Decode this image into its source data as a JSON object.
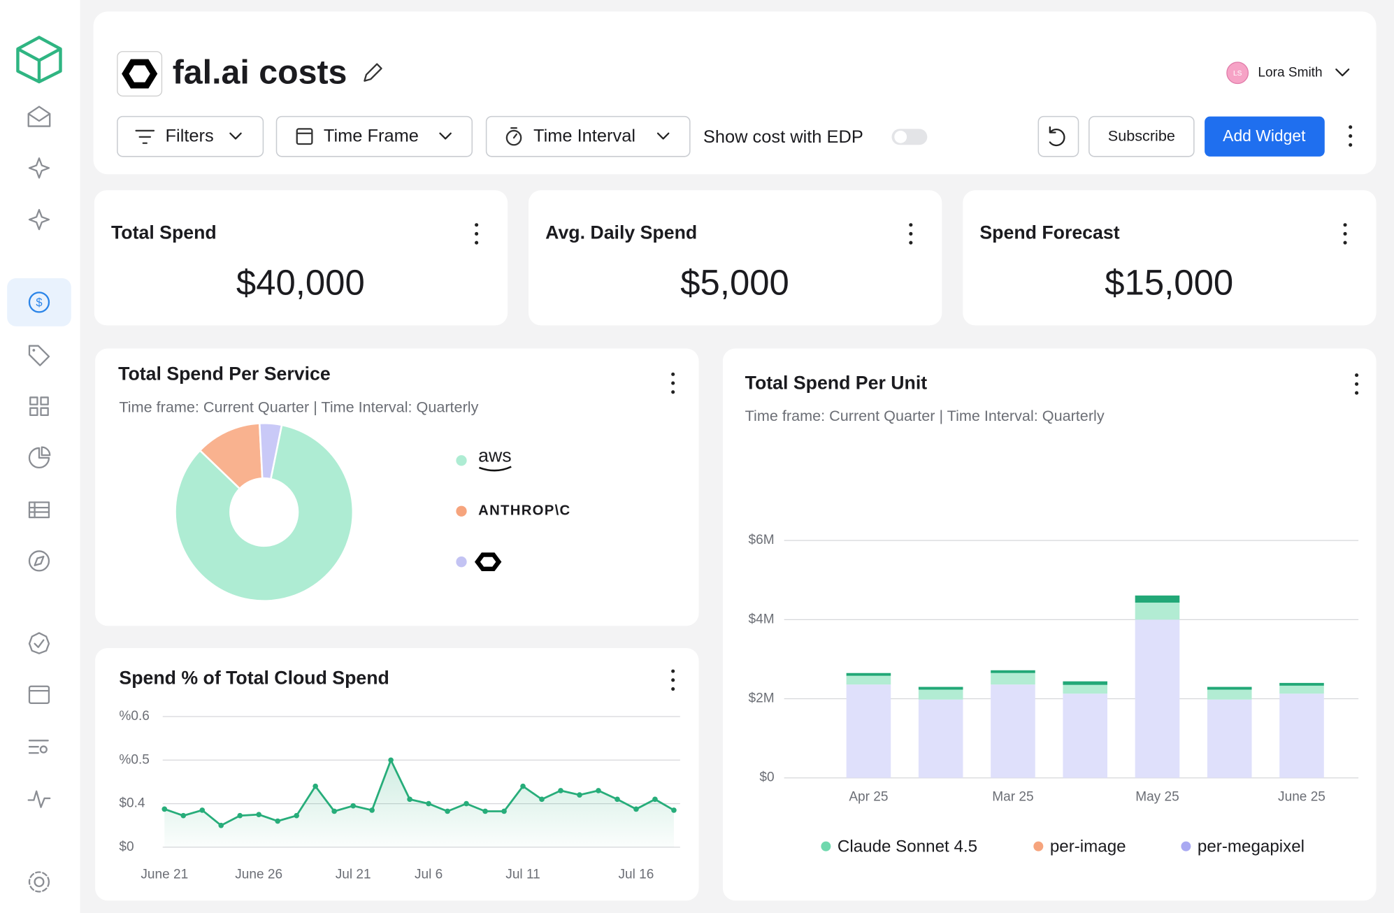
{
  "header": {
    "title": "fal.ai costs",
    "user": "Lora Smith",
    "initials": "LS",
    "controls": {
      "filters": "Filters",
      "time_frame": "Time Frame",
      "time_interval": "Time Interval",
      "edp": "Show cost with EDP",
      "subscribe": "Subscribe",
      "add_widget": "Add Widget"
    }
  },
  "kpis": [
    {
      "title": "Total Spend",
      "value": "$40,000"
    },
    {
      "title": "Avg. Daily Spend",
      "value": "$5,000"
    },
    {
      "title": "Spend Forecast",
      "value": "$15,000"
    }
  ],
  "chart_data": [
    {
      "type": "pie",
      "title": "Total Spend Per Service",
      "subtitle": "Time frame: Current Quarter | Time Interval: Quarterly",
      "categories": [
        "aws",
        "ANTHROP\\C",
        null
      ],
      "values": [
        84,
        12,
        4
      ],
      "colors": [
        "#aeecd3",
        "#f9b28f",
        "#c9c9f7"
      ],
      "legend_colors": [
        "#aeecd3",
        "#f6a47d",
        "#c3c3f3"
      ]
    },
    {
      "type": "line",
      "title": "Spend % of Total Cloud Spend",
      "color": "#27ad7a",
      "categories": [
        "June 21",
        null,
        null,
        null,
        null,
        "June 26",
        null,
        null,
        null,
        null,
        "Jul 21",
        null,
        null,
        null,
        "Jul 6",
        null,
        null,
        null,
        null,
        "Jul 11",
        null,
        null,
        null,
        null,
        null,
        "Jul 16",
        null,
        null
      ],
      "values": [
        0.35,
        0.29,
        0.34,
        0.2,
        0.29,
        0.3,
        0.24,
        0.29,
        0.44,
        0.33,
        0.38,
        0.34,
        0.5,
        0.41,
        0.4,
        0.33,
        0.4,
        0.33,
        0.33,
        0.44,
        0.41,
        0.43,
        0.42,
        0.43,
        0.41,
        0.35,
        0.41,
        0.34
      ],
      "ylim": [
        0,
        0.6
      ],
      "yticks": [
        {
          "value": 0.6,
          "label": "%0.6"
        },
        {
          "value": 0.5,
          "label": "%0.5"
        },
        {
          "value": 0.4,
          "label": "$0.4"
        },
        {
          "value": 0,
          "label": "$0"
        }
      ],
      "grid": true
    },
    {
      "type": "bar",
      "title": "Total Spend Per Unit",
      "subtitle": "Time frame: Current Quarter | Time Interval: Quarterly",
      "categories": [
        "Apr 25",
        null,
        "Mar 25",
        null,
        "May 25",
        null,
        "June 25"
      ],
      "series": [
        {
          "name": "per-megapixel",
          "color": "#dfe0fb",
          "legend_color": "#a9a9f2",
          "values": [
            2360000,
            1980000,
            2360000,
            2130000,
            4000000,
            1980000,
            2130000
          ]
        },
        {
          "name": "Claude Sonnet 4.5",
          "color": "#b2ecd3",
          "legend_color": "#6fd8ad",
          "values": [
            220000,
            250000,
            290000,
            220000,
            430000,
            250000,
            200000
          ]
        },
        {
          "name": "per-image",
          "color": "#22a877",
          "legend_color": "#f6a47d",
          "values": [
            70000,
            70000,
            70000,
            90000,
            180000,
            70000,
            70000
          ]
        }
      ],
      "legend_order": [
        1,
        2,
        0
      ],
      "ylim": [
        0,
        6000000
      ],
      "yticks": [
        {
          "value": 0,
          "label": "$0"
        },
        {
          "value": 2000000,
          "label": "$2M"
        },
        {
          "value": 4000000,
          "label": "$4M"
        },
        {
          "value": 6000000,
          "label": "$6M"
        }
      ],
      "grid": true
    }
  ]
}
